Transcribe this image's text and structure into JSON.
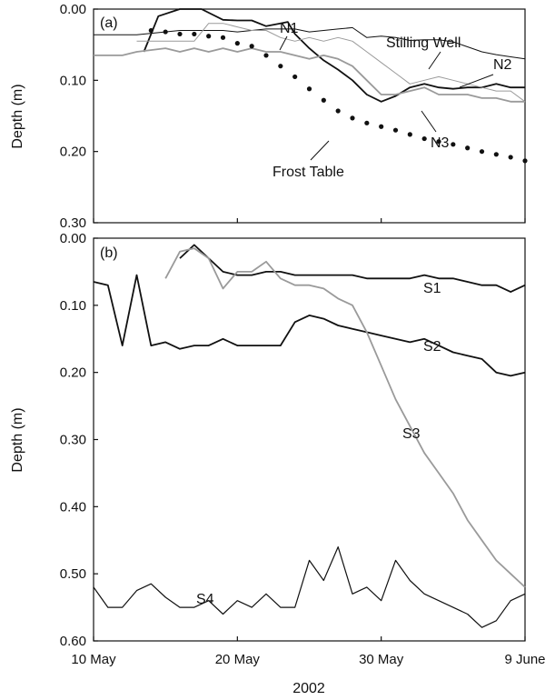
{
  "x_axis": {
    "ticks": [
      "10 May",
      "20 May",
      "30 May",
      "9 June"
    ],
    "tick_days": [
      0,
      10,
      20,
      30
    ],
    "label": "2002",
    "range": [
      0,
      30
    ]
  },
  "y_axis_label": "Depth (m)",
  "chart_data": [
    {
      "type": "line",
      "panel": "(a)",
      "ylabel": "Depth (m)",
      "ylim": [
        0.0,
        0.3
      ],
      "y_inverted": true,
      "yticks": [
        "0.00",
        "0.10",
        "0.20",
        "0.30"
      ],
      "ytick_values": [
        0.0,
        0.1,
        0.2,
        0.3
      ],
      "grid": false,
      "series": [
        {
          "name": "Stilling Well",
          "color": "#111111",
          "width": 1,
          "x": [
            0,
            3,
            6,
            9,
            10,
            12,
            14,
            15,
            17,
            18,
            19,
            20,
            21,
            22,
            23,
            24,
            25,
            26,
            27,
            28,
            29,
            30
          ],
          "values": [
            0.036,
            0.036,
            0.03,
            0.03,
            0.032,
            0.028,
            0.028,
            0.032,
            0.028,
            0.026,
            0.04,
            0.038,
            0.04,
            0.044,
            0.043,
            0.043,
            0.046,
            0.053,
            0.06,
            0.064,
            0.067,
            0.07
          ]
        },
        {
          "name": "N1",
          "color": "#111111",
          "width": 1.8,
          "x": [
            3.5,
            4.5,
            6,
            7.5,
            9,
            10,
            11,
            12,
            13,
            13.5,
            14,
            15,
            16,
            17,
            18,
            19,
            20,
            21,
            22,
            23,
            24,
            25,
            26,
            27,
            28,
            29,
            30
          ],
          "values": [
            0.06,
            0.01,
            0.0,
            0.0,
            0.015,
            0.016,
            0.016,
            0.024,
            0.02,
            0.018,
            0.035,
            0.055,
            0.072,
            0.085,
            0.1,
            0.12,
            0.13,
            0.122,
            0.11,
            0.105,
            0.11,
            0.112,
            0.11,
            0.11,
            0.105,
            0.11,
            0.11
          ]
        },
        {
          "name": "N2",
          "color": "#9a9a9a",
          "width": 1,
          "x": [
            3,
            5,
            7,
            8,
            9,
            10,
            11,
            12,
            13,
            14,
            15,
            16,
            17,
            18,
            19,
            20,
            21,
            22,
            23,
            24,
            25,
            26,
            27,
            28,
            29,
            30
          ],
          "values": [
            0.045,
            0.045,
            0.045,
            0.02,
            0.02,
            0.025,
            0.03,
            0.03,
            0.04,
            0.045,
            0.04,
            0.045,
            0.04,
            0.045,
            0.06,
            0.075,
            0.09,
            0.105,
            0.1,
            0.095,
            0.1,
            0.105,
            0.11,
            0.115,
            0.115,
            0.13
          ]
        },
        {
          "name": "N3",
          "color": "#9a9a9a",
          "width": 1.8,
          "x": [
            0,
            2,
            3,
            5,
            6,
            7,
            8,
            9,
            10,
            11,
            12,
            13,
            14,
            15,
            16,
            17,
            18,
            19,
            20,
            21,
            22,
            23,
            24,
            25,
            26,
            27,
            28,
            29,
            30
          ],
          "values": [
            0.065,
            0.065,
            0.06,
            0.055,
            0.06,
            0.055,
            0.06,
            0.055,
            0.06,
            0.055,
            0.06,
            0.06,
            0.065,
            0.07,
            0.065,
            0.07,
            0.08,
            0.1,
            0.12,
            0.12,
            0.115,
            0.11,
            0.12,
            0.12,
            0.12,
            0.125,
            0.125,
            0.13,
            0.13
          ]
        },
        {
          "name": "Frost Table",
          "color": "#111111",
          "dotted": true,
          "x": [
            4,
            5,
            6,
            7,
            8,
            9,
            10,
            11,
            12,
            13,
            14,
            15,
            16,
            17,
            18,
            19,
            20,
            21,
            22,
            23,
            24,
            25,
            26,
            27,
            28,
            29,
            30
          ],
          "values": [
            0.03,
            0.032,
            0.035,
            0.035,
            0.038,
            0.04,
            0.048,
            0.052,
            0.065,
            0.08,
            0.095,
            0.112,
            0.128,
            0.143,
            0.153,
            0.16,
            0.165,
            0.17,
            0.176,
            0.182,
            0.186,
            0.19,
            0.195,
            0.2,
            0.204,
            0.208,
            0.213
          ]
        }
      ]
    },
    {
      "type": "line",
      "panel": "(b)",
      "ylabel": "Depth (m)",
      "ylim": [
        0.0,
        0.6
      ],
      "y_inverted": true,
      "yticks": [
        "0.00",
        "0.10",
        "0.20",
        "0.30",
        "0.40",
        "0.50",
        "0.60"
      ],
      "ytick_values": [
        0.0,
        0.1,
        0.2,
        0.3,
        0.4,
        0.5,
        0.6
      ],
      "grid": false,
      "series": [
        {
          "name": "S1",
          "color": "#111111",
          "width": 1.8,
          "x": [
            6,
            7,
            8,
            9,
            10,
            11,
            12,
            13,
            14,
            15,
            16,
            17,
            18,
            19,
            20,
            21,
            22,
            23,
            24,
            25,
            26,
            27,
            28,
            29,
            30
          ],
          "values": [
            0.03,
            0.01,
            0.03,
            0.05,
            0.055,
            0.055,
            0.05,
            0.05,
            0.055,
            0.055,
            0.055,
            0.055,
            0.055,
            0.06,
            0.06,
            0.06,
            0.06,
            0.055,
            0.06,
            0.06,
            0.065,
            0.07,
            0.07,
            0.08,
            0.07
          ]
        },
        {
          "name": "S2",
          "color": "#111111",
          "width": 1.8,
          "x": [
            0,
            1,
            2,
            3,
            4,
            5,
            6,
            7,
            8,
            9,
            10,
            11,
            12,
            13,
            14,
            15,
            16,
            17,
            18,
            19,
            20,
            21,
            22,
            23,
            24,
            25,
            26,
            27,
            28,
            29,
            30
          ],
          "values": [
            0.065,
            0.07,
            0.16,
            0.055,
            0.16,
            0.155,
            0.165,
            0.16,
            0.16,
            0.15,
            0.16,
            0.16,
            0.16,
            0.16,
            0.125,
            0.115,
            0.12,
            0.13,
            0.135,
            0.14,
            0.145,
            0.15,
            0.155,
            0.15,
            0.16,
            0.17,
            0.175,
            0.18,
            0.2,
            0.205,
            0.2
          ]
        },
        {
          "name": "S3",
          "color": "#9a9a9a",
          "width": 1.8,
          "x": [
            5,
            6,
            7,
            8,
            9,
            10,
            11,
            12,
            13,
            14,
            15,
            16,
            17,
            18,
            19,
            20,
            21,
            22,
            23,
            24,
            25,
            26,
            27,
            28,
            29,
            30
          ],
          "values": [
            0.06,
            0.02,
            0.015,
            0.03,
            0.075,
            0.05,
            0.05,
            0.035,
            0.06,
            0.07,
            0.07,
            0.075,
            0.09,
            0.1,
            0.14,
            0.19,
            0.24,
            0.28,
            0.32,
            0.35,
            0.38,
            0.42,
            0.45,
            0.48,
            0.5,
            0.52
          ]
        },
        {
          "name": "S4",
          "color": "#111111",
          "width": 1.2,
          "x": [
            0,
            1,
            2,
            3,
            4,
            5,
            6,
            7,
            8,
            9,
            10,
            11,
            12,
            13,
            14,
            15,
            16,
            17,
            18,
            19,
            20,
            21,
            22,
            23,
            24,
            25,
            26,
            27,
            28,
            29,
            30
          ],
          "values": [
            0.52,
            0.55,
            0.55,
            0.525,
            0.515,
            0.535,
            0.55,
            0.55,
            0.54,
            0.56,
            0.54,
            0.55,
            0.53,
            0.55,
            0.55,
            0.48,
            0.51,
            0.46,
            0.53,
            0.52,
            0.54,
            0.48,
            0.51,
            0.53,
            0.54,
            0.55,
            0.56,
            0.58,
            0.57,
            0.54,
            0.53
          ]
        }
      ]
    }
  ]
}
